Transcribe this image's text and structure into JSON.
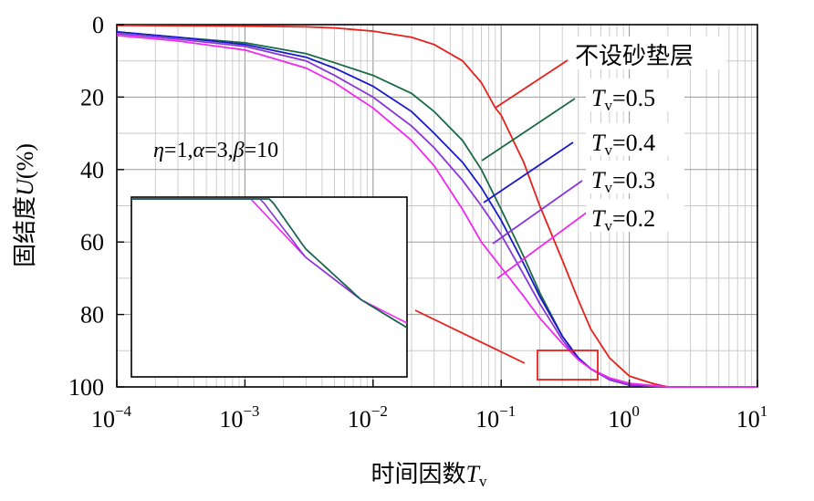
{
  "chart_data": {
    "type": "line",
    "xscale": "log",
    "xlim": [
      0.0001,
      10
    ],
    "ylim": [
      0,
      100
    ],
    "y_inverted": true,
    "grid": true,
    "x_ticks": [
      {
        "base": "10",
        "exp": "−4"
      },
      {
        "base": "10",
        "exp": "−3"
      },
      {
        "base": "10",
        "exp": "−2"
      },
      {
        "base": "10",
        "exp": "−1"
      },
      {
        "base": "10",
        "exp": "0"
      },
      {
        "base": "10",
        "exp": "1"
      }
    ],
    "y_ticks": [
      "0",
      "20",
      "40",
      "60",
      "80",
      "100"
    ],
    "xlabel": {
      "prefix": "时间因数",
      "var": "T",
      "sub": "v"
    },
    "ylabel": {
      "prefix": "固结度",
      "var": "U",
      "suffix": "(%)"
    },
    "annotation": {
      "eta": "η",
      "eta_val": "=1,",
      "alpha": "α",
      "alpha_val": "=3,",
      "beta": "β",
      "beta_val": "=10"
    },
    "series": [
      {
        "name": "不设砂垫层",
        "color": "#e8201a",
        "points": [
          [
            0.0001,
            0.2
          ],
          [
            0.0003,
            0.3
          ],
          [
            0.001,
            0.4
          ],
          [
            0.003,
            0.6
          ],
          [
            0.005,
            0.9
          ],
          [
            0.01,
            1.8
          ],
          [
            0.02,
            3.5
          ],
          [
            0.03,
            5.5
          ],
          [
            0.05,
            10
          ],
          [
            0.07,
            16
          ],
          [
            0.09,
            23
          ],
          [
            0.1,
            25
          ],
          [
            0.15,
            38
          ],
          [
            0.2,
            50
          ],
          [
            0.3,
            65
          ],
          [
            0.4,
            76
          ],
          [
            0.5,
            84
          ],
          [
            0.7,
            92
          ],
          [
            1.0,
            97
          ],
          [
            1.5,
            99
          ],
          [
            2,
            100
          ],
          [
            10,
            100
          ]
        ]
      },
      {
        "name": "0.5",
        "color": "#1a6a45",
        "points": [
          [
            0.0001,
            2
          ],
          [
            0.0003,
            3.5
          ],
          [
            0.001,
            5
          ],
          [
            0.003,
            8
          ],
          [
            0.005,
            10.5
          ],
          [
            0.01,
            14
          ],
          [
            0.02,
            19
          ],
          [
            0.03,
            24
          ],
          [
            0.05,
            32
          ],
          [
            0.07,
            40
          ],
          [
            0.1,
            51
          ],
          [
            0.15,
            64
          ],
          [
            0.2,
            74
          ],
          [
            0.3,
            86
          ],
          [
            0.4,
            92
          ],
          [
            0.5,
            95
          ],
          [
            0.7,
            98
          ],
          [
            1.0,
            99.5
          ],
          [
            2,
            100
          ],
          [
            10,
            100
          ]
        ]
      },
      {
        "name": "0.4",
        "color": "#1818cc",
        "points": [
          [
            0.0001,
            2
          ],
          [
            0.0003,
            3.5
          ],
          [
            0.001,
            5.5
          ],
          [
            0.003,
            9
          ],
          [
            0.005,
            12
          ],
          [
            0.01,
            17
          ],
          [
            0.02,
            24
          ],
          [
            0.03,
            30
          ],
          [
            0.05,
            38
          ],
          [
            0.07,
            45
          ],
          [
            0.1,
            54
          ],
          [
            0.15,
            66
          ],
          [
            0.2,
            75
          ],
          [
            0.3,
            86
          ],
          [
            0.4,
            92
          ],
          [
            0.5,
            95
          ],
          [
            0.7,
            98
          ],
          [
            1.0,
            99.5
          ],
          [
            2,
            100
          ],
          [
            10,
            100
          ]
        ]
      },
      {
        "name": "0.3",
        "color": "#8a35d8",
        "points": [
          [
            0.0001,
            2.5
          ],
          [
            0.0003,
            4
          ],
          [
            0.001,
            6
          ],
          [
            0.003,
            10
          ],
          [
            0.005,
            14
          ],
          [
            0.01,
            20
          ],
          [
            0.02,
            28
          ],
          [
            0.03,
            34
          ],
          [
            0.05,
            43
          ],
          [
            0.07,
            50
          ],
          [
            0.1,
            58
          ],
          [
            0.15,
            69
          ],
          [
            0.2,
            77
          ],
          [
            0.3,
            87
          ],
          [
            0.4,
            92.5
          ],
          [
            0.5,
            95
          ],
          [
            0.7,
            98
          ],
          [
            1.0,
            99.5
          ],
          [
            2,
            100
          ],
          [
            10,
            100
          ]
        ]
      },
      {
        "name": "0.2",
        "color": "#f028f0",
        "points": [
          [
            0.0001,
            3
          ],
          [
            0.0003,
            4.5
          ],
          [
            0.001,
            7
          ],
          [
            0.003,
            12
          ],
          [
            0.005,
            16
          ],
          [
            0.01,
            23
          ],
          [
            0.02,
            32
          ],
          [
            0.03,
            39
          ],
          [
            0.05,
            51
          ],
          [
            0.07,
            60
          ],
          [
            0.1,
            67
          ],
          [
            0.15,
            75
          ],
          [
            0.2,
            81
          ],
          [
            0.3,
            88
          ],
          [
            0.4,
            92.5
          ],
          [
            0.5,
            95
          ],
          [
            0.7,
            97.5
          ],
          [
            1.0,
            99
          ],
          [
            2,
            100
          ],
          [
            10,
            100
          ]
        ]
      }
    ],
    "legend_var": "T",
    "legend_sub": "v",
    "legend_eq": "="
  }
}
